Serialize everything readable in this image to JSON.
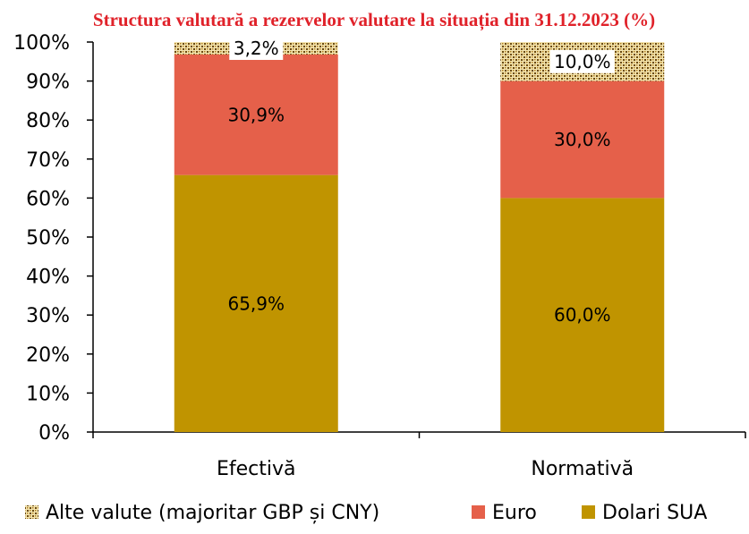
{
  "chart_data": {
    "type": "bar",
    "stacked": true,
    "title": "Structura valutară a rezervelor valutare la situația din 31.12.2023 (%)",
    "categories": [
      "Efectivă",
      "Normativă"
    ],
    "series": [
      {
        "name": "Dolari SUA",
        "values": [
          65.9,
          60.0
        ],
        "labels": [
          "65,9%",
          "60,0%"
        ],
        "color": "#c09400",
        "pattern": false
      },
      {
        "name": "Euro",
        "values": [
          30.9,
          30.0
        ],
        "labels": [
          "30,9%",
          "30,0%"
        ],
        "color": "#e5604a",
        "pattern": false
      },
      {
        "name": "Alte valute (majoritar GBP și CNY)",
        "values": [
          3.2,
          10.0
        ],
        "labels": [
          "3,2%",
          "10,0%"
        ],
        "color": "#c9a227",
        "pattern": true
      }
    ],
    "legend_order": [
      2,
      1,
      0
    ],
    "y_ticks": [
      "0%",
      "10%",
      "20%",
      "30%",
      "40%",
      "50%",
      "60%",
      "70%",
      "80%",
      "90%",
      "100%"
    ],
    "ylim": [
      0,
      100
    ],
    "grid": false,
    "legend_position": "bottom",
    "title_color": "#e0222a"
  }
}
